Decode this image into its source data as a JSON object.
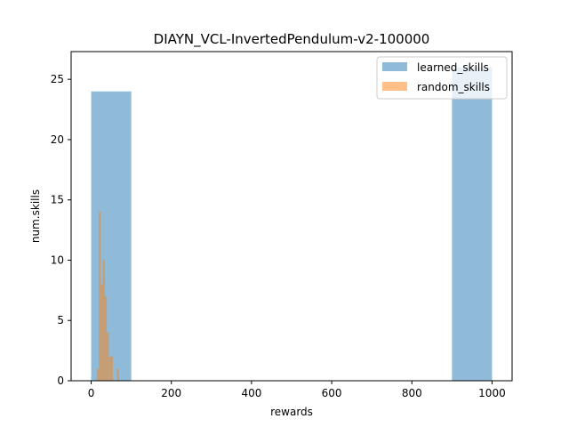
{
  "chart_data": {
    "type": "histogram",
    "title": "DIAYN_VCL-InvertedPendulum-v2-100000",
    "xlabel": "rewards",
    "ylabel": "num.skills",
    "xlim": [
      -50,
      1050
    ],
    "ylim": [
      0,
      27.3
    ],
    "xticks": [
      0,
      200,
      400,
      600,
      800,
      1000
    ],
    "yticks": [
      0,
      5,
      10,
      15,
      20,
      25
    ],
    "grid": false,
    "legend_position": "upper right",
    "series": [
      {
        "name": "learned_skills",
        "color": "#1f77b4",
        "alpha": 0.5,
        "bins": [
          {
            "x0": 0,
            "x1": 100,
            "count": 24
          },
          {
            "x0": 100,
            "x1": 200,
            "count": 0
          },
          {
            "x0": 200,
            "x1": 300,
            "count": 0
          },
          {
            "x0": 300,
            "x1": 400,
            "count": 0
          },
          {
            "x0": 400,
            "x1": 500,
            "count": 0
          },
          {
            "x0": 500,
            "x1": 600,
            "count": 0
          },
          {
            "x0": 600,
            "x1": 700,
            "count": 0
          },
          {
            "x0": 700,
            "x1": 800,
            "count": 0
          },
          {
            "x0": 800,
            "x1": 900,
            "count": 0
          },
          {
            "x0": 900,
            "x1": 1000,
            "count": 26
          }
        ]
      },
      {
        "name": "random_skills",
        "color": "#ff7f0e",
        "alpha": 0.5,
        "bins": [
          {
            "x0": 14,
            "x1": 19,
            "count": 1
          },
          {
            "x0": 19,
            "x1": 24,
            "count": 14
          },
          {
            "x0": 24,
            "x1": 29,
            "count": 8
          },
          {
            "x0": 29,
            "x1": 34,
            "count": 10
          },
          {
            "x0": 34,
            "x1": 39,
            "count": 7
          },
          {
            "x0": 39,
            "x1": 44,
            "count": 4
          },
          {
            "x0": 44,
            "x1": 49,
            "count": 2
          },
          {
            "x0": 49,
            "x1": 54,
            "count": 2
          },
          {
            "x0": 54,
            "x1": 59,
            "count": 0
          },
          {
            "x0": 59,
            "x1": 64,
            "count": 0
          },
          {
            "x0": 64,
            "x1": 69,
            "count": 1
          },
          {
            "x0": 69,
            "x1": 74,
            "count": 0
          }
        ]
      }
    ]
  }
}
